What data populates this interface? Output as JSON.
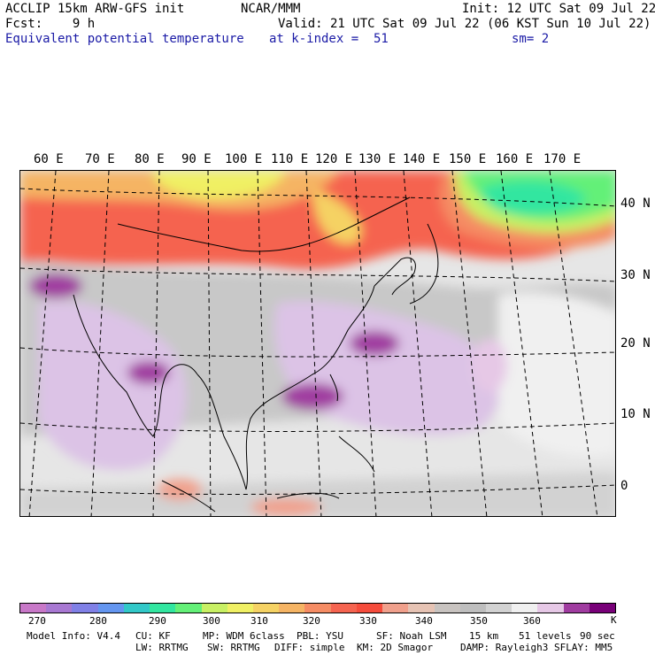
{
  "header": {
    "line1_left": "ACCLIP 15km ARW-GFS init",
    "line1_center": "NCAR/MMM",
    "line1_right": "Init: 12 UTC Sat 09 Jul 22",
    "line2_left": "Fcst:    9 h",
    "line2_right": "Valid: 21 UTC Sat 09 Jul 22 (06 KST Sun 10 Jul 22)",
    "line3_left": "Equivalent potential temperature",
    "line3_center": "at k-index =  51",
    "line3_right": "sm= 2"
  },
  "map": {
    "lon_labels": [
      "60 E",
      "70 E",
      "80 E",
      "90 E",
      "100 E",
      "110 E",
      "120 E",
      "130 E",
      "140 E",
      "150 E",
      "160 E",
      "170 E"
    ],
    "lat_labels": [
      "40 N",
      "30 N",
      "20 N",
      "10 N",
      "0"
    ]
  },
  "colorbar": {
    "unit": "K",
    "tick_labels": [
      "270",
      "280",
      "290",
      "300",
      "310",
      "320",
      "330",
      "340",
      "350",
      "360"
    ],
    "colors": [
      "#c878c8",
      "#a878d2",
      "#8080e6",
      "#6496f0",
      "#32c8c8",
      "#32e6a0",
      "#64f078",
      "#c8f064",
      "#f0f064",
      "#f5d264",
      "#f5b464",
      "#f58c64",
      "#f56450",
      "#f54c3c",
      "#f0a08c",
      "#e6c3b4",
      "#c8c3c0",
      "#bebebe",
      "#d2d2d2",
      "#f0f0f0",
      "#e6c8e6",
      "#a03ca0",
      "#780078"
    ]
  },
  "footer": {
    "line1": [
      "Model Info: V4.4",
      "CU: KF",
      "MP: WDM 6class",
      "PBL: YSU",
      "SF: Noah LSM",
      "15 km",
      "51 levels",
      "90 sec"
    ],
    "line2": [
      "LW: RRTMG",
      "SW: RRTMG",
      "DIFF: simple",
      "KM: 2D Smagor",
      "DAMP: Rayleigh3",
      "SFLAY: MM5"
    ]
  }
}
